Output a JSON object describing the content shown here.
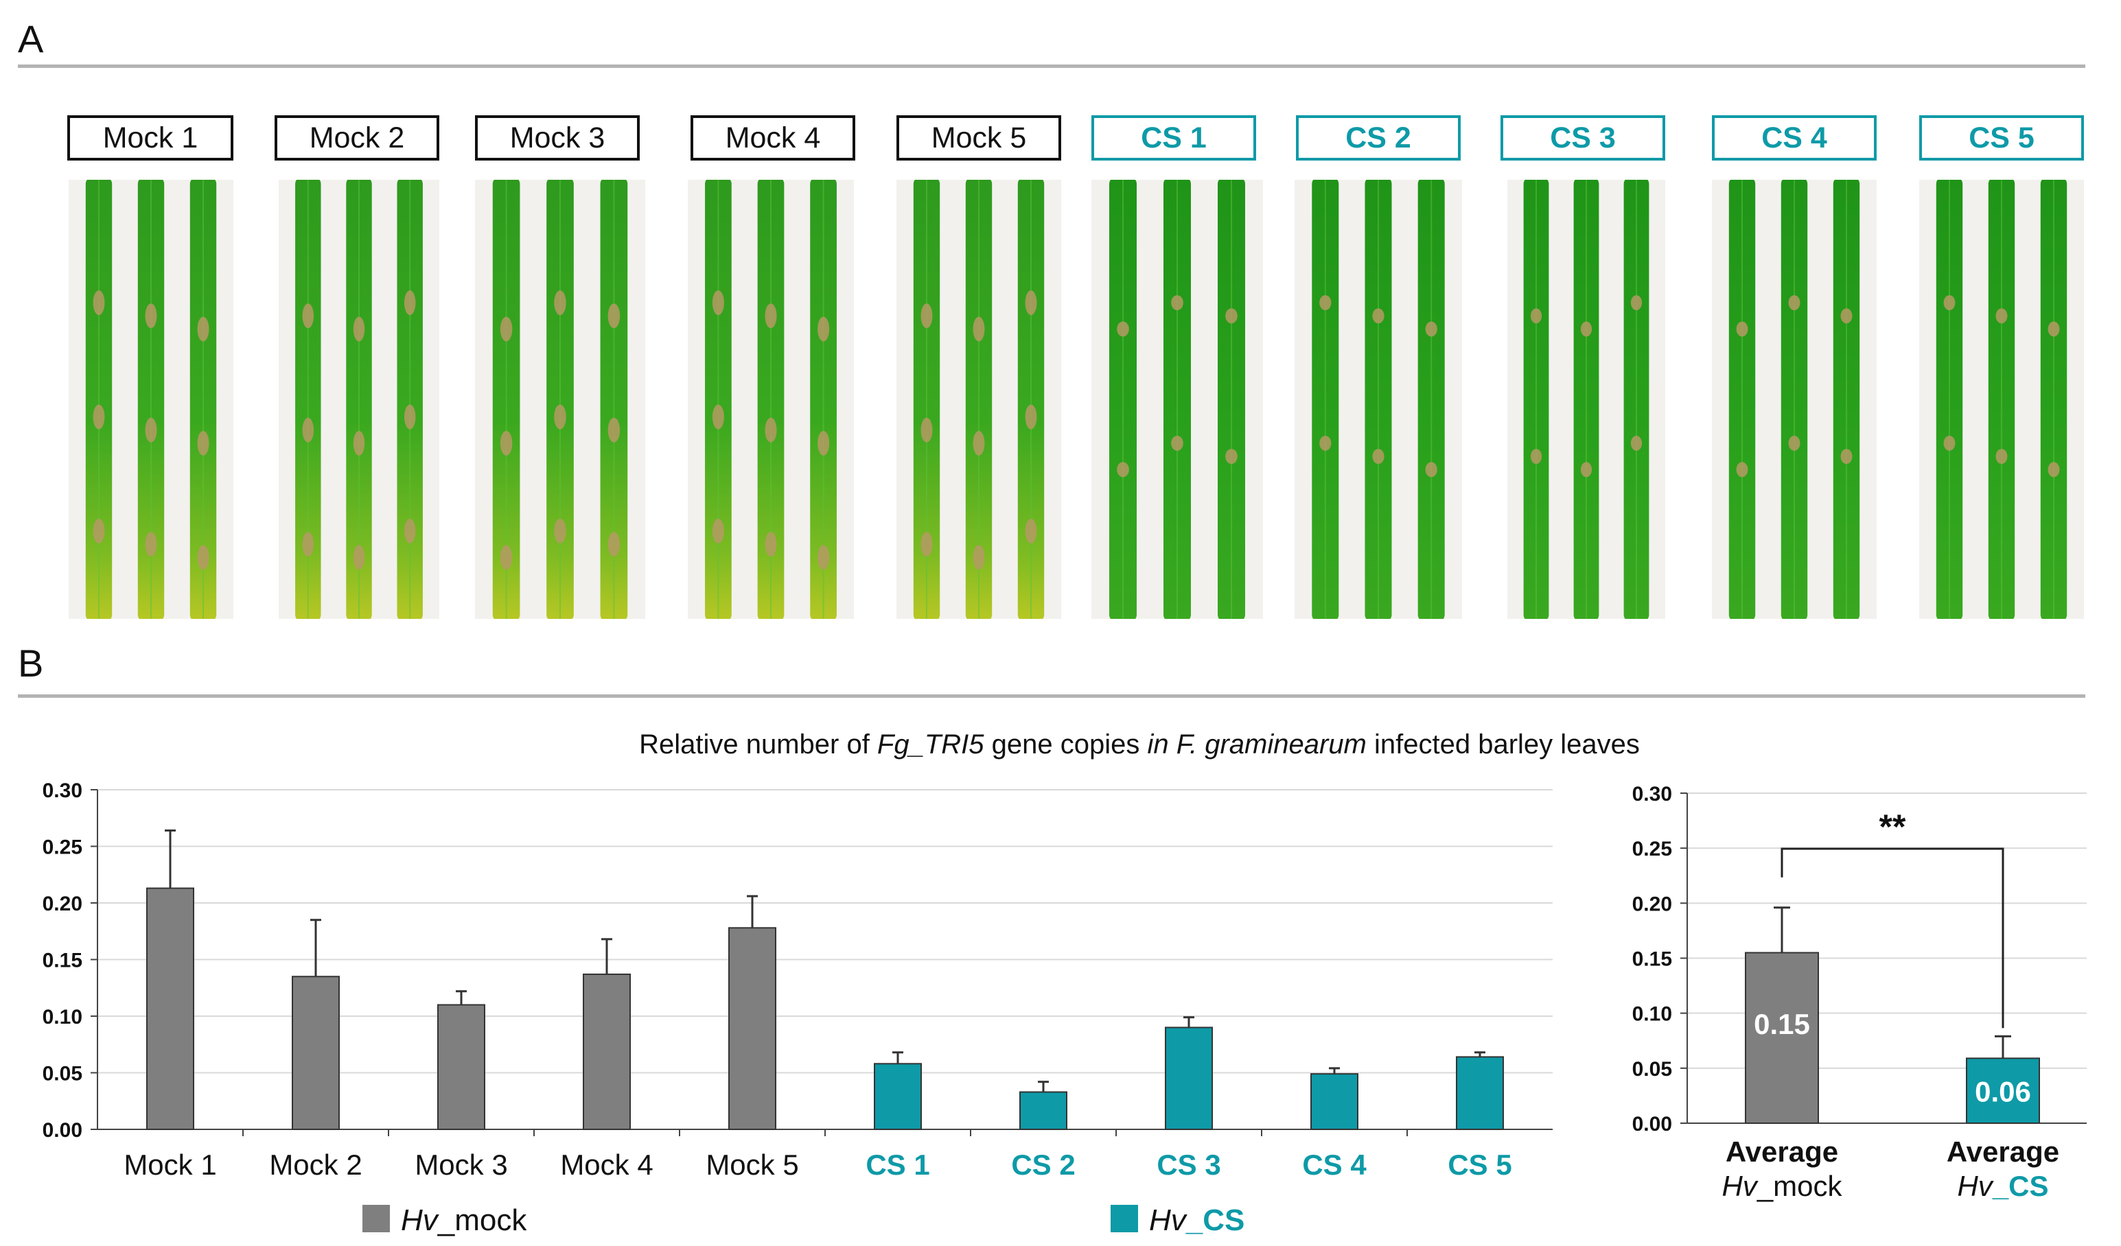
{
  "panels": {
    "a_label": "A",
    "b_label": "B"
  },
  "samples": [
    {
      "label": "Mock 1",
      "group": "mock"
    },
    {
      "label": "Mock 2",
      "group": "mock"
    },
    {
      "label": "Mock 3",
      "group": "mock"
    },
    {
      "label": "Mock 4",
      "group": "mock"
    },
    {
      "label": "Mock 5",
      "group": "mock"
    },
    {
      "label": "CS  1",
      "group": "cs"
    },
    {
      "label": "CS 2",
      "group": "cs"
    },
    {
      "label": "CS 3",
      "group": "cs"
    },
    {
      "label": "CS 4",
      "group": "cs"
    },
    {
      "label": "CS 5",
      "group": "cs"
    }
  ],
  "colors": {
    "mock": "#7f7f7f",
    "cs": "#0e9aa7",
    "grid": "#d9d9d9",
    "axis": "#444444"
  },
  "chart_data": [
    {
      "type": "bar",
      "title_parts": [
        {
          "text": "Relative number of ",
          "italic": false
        },
        {
          "text": "Fg_TRI5",
          "italic": true
        },
        {
          "text": " gene copies ",
          "italic": false
        },
        {
          "text": "in F. graminearum",
          "italic": true
        },
        {
          "text": " infected barley leaves",
          "italic": false
        }
      ],
      "categories": [
        "Mock 1",
        "Mock 2",
        "Mock 3",
        "Mock 4",
        "Mock 5",
        "CS 1",
        "CS 2",
        "CS 3",
        "CS 4",
        "CS 5"
      ],
      "values": [
        0.213,
        0.135,
        0.11,
        0.137,
        0.178,
        0.058,
        0.033,
        0.09,
        0.049,
        0.064
      ],
      "errors": [
        0.051,
        0.05,
        0.012,
        0.031,
        0.028,
        0.01,
        0.009,
        0.009,
        0.005,
        0.004
      ],
      "groups": [
        "mock",
        "mock",
        "mock",
        "mock",
        "mock",
        "cs",
        "cs",
        "cs",
        "cs",
        "cs"
      ],
      "ylim": [
        0,
        0.3
      ],
      "yticks": [
        "0.00",
        "0.05",
        "0.10",
        "0.15",
        "0.20",
        "0.25",
        "0.30"
      ],
      "legend": [
        {
          "italic": "Hv",
          "rest": "_mock",
          "group": "mock"
        },
        {
          "italic": "Hv",
          "rest": "_CS",
          "group": "cs"
        }
      ]
    },
    {
      "type": "bar",
      "categories": [
        {
          "line1": "Average",
          "line2_italic": "Hv",
          "line2_rest": "_mock",
          "group": "mock"
        },
        {
          "line1": "Average",
          "line2_italic": "Hv",
          "line2_rest": "_CS",
          "group": "cs"
        }
      ],
      "values": [
        0.155,
        0.059
      ],
      "errors": [
        0.041,
        0.02
      ],
      "data_labels": [
        "0.15",
        "0.06"
      ],
      "ylim": [
        0,
        0.3
      ],
      "yticks": [
        "0.00",
        "0.05",
        "0.10",
        "0.15",
        "0.20",
        "0.25",
        "0.30"
      ],
      "significance": "**"
    }
  ]
}
